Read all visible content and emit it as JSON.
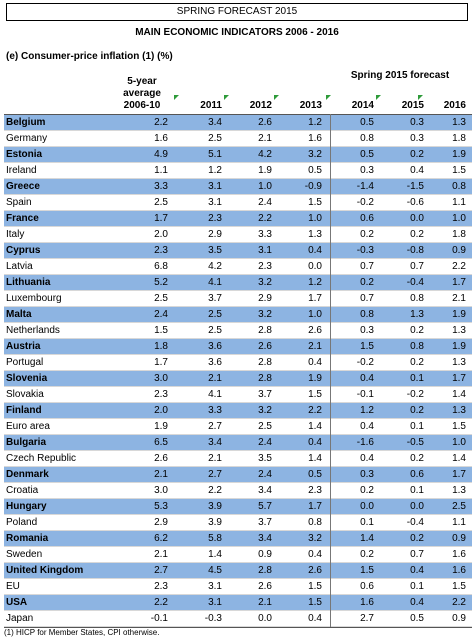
{
  "header": {
    "banner": "SPRING FORECAST 2015",
    "title": "MAIN ECONOMIC INDICATORS 2006 - 2016",
    "subtitle": "(e)  Consumer-price inflation (1) (%)",
    "forecast_label": "Spring 2015 forecast"
  },
  "table": {
    "columns": [
      "5-year average 2006-10",
      "2011",
      "2012",
      "2013",
      "2014",
      "2015",
      "2016"
    ],
    "rows": [
      [
        "Belgium",
        "2.2",
        "3.4",
        "2.6",
        "1.2",
        "0.5",
        "0.3",
        "1.3"
      ],
      [
        "Germany",
        "1.6",
        "2.5",
        "2.1",
        "1.6",
        "0.8",
        "0.3",
        "1.8"
      ],
      [
        "Estonia",
        "4.9",
        "5.1",
        "4.2",
        "3.2",
        "0.5",
        "0.2",
        "1.9"
      ],
      [
        "Ireland",
        "1.1",
        "1.2",
        "1.9",
        "0.5",
        "0.3",
        "0.4",
        "1.5"
      ],
      [
        "Greece",
        "3.3",
        "3.1",
        "1.0",
        "-0.9",
        "-1.4",
        "-1.5",
        "0.8"
      ],
      [
        "Spain",
        "2.5",
        "3.1",
        "2.4",
        "1.5",
        "-0.2",
        "-0.6",
        "1.1"
      ],
      [
        "France",
        "1.7",
        "2.3",
        "2.2",
        "1.0",
        "0.6",
        "0.0",
        "1.0"
      ],
      [
        "Italy",
        "2.0",
        "2.9",
        "3.3",
        "1.3",
        "0.2",
        "0.2",
        "1.8"
      ],
      [
        "Cyprus",
        "2.3",
        "3.5",
        "3.1",
        "0.4",
        "-0.3",
        "-0.8",
        "0.9"
      ],
      [
        "Latvia",
        "6.8",
        "4.2",
        "2.3",
        "0.0",
        "0.7",
        "0.7",
        "2.2"
      ],
      [
        "Lithuania",
        "5.2",
        "4.1",
        "3.2",
        "1.2",
        "0.2",
        "-0.4",
        "1.7"
      ],
      [
        "Luxembourg",
        "2.5",
        "3.7",
        "2.9",
        "1.7",
        "0.7",
        "0.8",
        "2.1"
      ],
      [
        "Malta",
        "2.4",
        "2.5",
        "3.2",
        "1.0",
        "0.8",
        "1.3",
        "1.9"
      ],
      [
        "Netherlands",
        "1.5",
        "2.5",
        "2.8",
        "2.6",
        "0.3",
        "0.2",
        "1.3"
      ],
      [
        "Austria",
        "1.8",
        "3.6",
        "2.6",
        "2.1",
        "1.5",
        "0.8",
        "1.9"
      ],
      [
        "Portugal",
        "1.7",
        "3.6",
        "2.8",
        "0.4",
        "-0.2",
        "0.2",
        "1.3"
      ],
      [
        "Slovenia",
        "3.0",
        "2.1",
        "2.8",
        "1.9",
        "0.4",
        "0.1",
        "1.7"
      ],
      [
        "Slovakia",
        "2.3",
        "4.1",
        "3.7",
        "1.5",
        "-0.1",
        "-0.2",
        "1.4"
      ],
      [
        "Finland",
        "2.0",
        "3.3",
        "3.2",
        "2.2",
        "1.2",
        "0.2",
        "1.3"
      ],
      [
        "Euro area",
        "1.9",
        "2.7",
        "2.5",
        "1.4",
        "0.4",
        "0.1",
        "1.5"
      ],
      [
        "Bulgaria",
        "6.5",
        "3.4",
        "2.4",
        "0.4",
        "-1.6",
        "-0.5",
        "1.0"
      ],
      [
        "Czech Republic",
        "2.6",
        "2.1",
        "3.5",
        "1.4",
        "0.4",
        "0.2",
        "1.4"
      ],
      [
        "Denmark",
        "2.1",
        "2.7",
        "2.4",
        "0.5",
        "0.3",
        "0.6",
        "1.7"
      ],
      [
        "Croatia",
        "3.0",
        "2.2",
        "3.4",
        "2.3",
        "0.2",
        "0.1",
        "1.3"
      ],
      [
        "Hungary",
        "5.3",
        "3.9",
        "5.7",
        "1.7",
        "0.0",
        "0.0",
        "2.5"
      ],
      [
        "Poland",
        "2.9",
        "3.9",
        "3.7",
        "0.8",
        "0.1",
        "-0.4",
        "1.1"
      ],
      [
        "Romania",
        "6.2",
        "5.8",
        "3.4",
        "3.2",
        "1.4",
        "0.2",
        "0.9"
      ],
      [
        "Sweden",
        "2.1",
        "1.4",
        "0.9",
        "0.4",
        "0.2",
        "0.7",
        "1.6"
      ],
      [
        "United Kingdom",
        "2.7",
        "4.5",
        "2.8",
        "2.6",
        "1.5",
        "0.4",
        "1.6"
      ],
      [
        "EU",
        "2.3",
        "3.1",
        "2.6",
        "1.5",
        "0.6",
        "0.1",
        "1.5"
      ],
      [
        "USA",
        "2.2",
        "3.1",
        "2.1",
        "1.5",
        "1.6",
        "0.4",
        "2.2"
      ],
      [
        "Japan",
        "-0.1",
        "-0.3",
        "0.0",
        "0.4",
        "2.7",
        "0.5",
        "0.9"
      ]
    ]
  },
  "footnote": "(1) HICP for Member States, CPI otherwise."
}
